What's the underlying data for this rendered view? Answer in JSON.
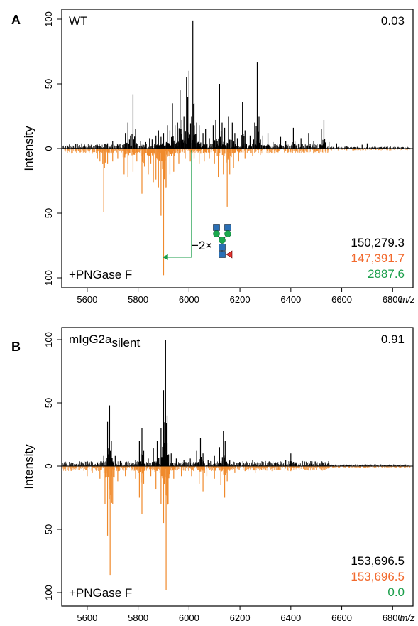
{
  "colors": {
    "top": "#000000",
    "bottom": "#f08a2c",
    "green": "#1a9e4a",
    "orange_text": "#f26a2e",
    "glycan_blue": "#2a6fb5",
    "glycan_green": "#1aa84c",
    "glycan_red": "#e2332e"
  },
  "chart_data": [
    {
      "panel": "A",
      "type": "line",
      "top_label": "WT",
      "bottom_label": "+PNGase F",
      "correlation": "0.03",
      "masses": [
        "150,279.3",
        "147,391.7",
        "2887.6"
      ],
      "glycan_label": "−2×",
      "ylabel": "Intensity",
      "xlabel": "m/z",
      "xlim": [
        5500,
        6880
      ],
      "ylim_top": [
        0,
        100
      ],
      "ylim_bottom": [
        0,
        100
      ],
      "x_ticks": [
        5600,
        5800,
        6000,
        6200,
        6400,
        6600,
        6800
      ],
      "y_ticks": [
        100,
        50,
        0,
        50,
        100
      ],
      "series": [
        {
          "name": "WT",
          "peaks": [
            [
              5590,
              2
            ],
            [
              5640,
              3
            ],
            [
              5680,
              4
            ],
            [
              5700,
              6
            ],
            [
              5720,
              3
            ],
            [
              5750,
              12
            ],
            [
              5760,
              20
            ],
            [
              5770,
              10
            ],
            [
              5780,
              42
            ],
            [
              5790,
              15
            ],
            [
              5810,
              6
            ],
            [
              5830,
              5
            ],
            [
              5845,
              8
            ],
            [
              5855,
              7
            ],
            [
              5870,
              10
            ],
            [
              5880,
              14
            ],
            [
              5890,
              9
            ],
            [
              5900,
              12
            ],
            [
              5915,
              18
            ],
            [
              5925,
              14
            ],
            [
              5935,
              35
            ],
            [
              5945,
              18
            ],
            [
              5955,
              20
            ],
            [
              5965,
              45
            ],
            [
              5972,
              22
            ],
            [
              5980,
              25
            ],
            [
              5990,
              55
            ],
            [
              5995,
              40
            ],
            [
              6000,
              60
            ],
            [
              6010,
              25
            ],
            [
              6015,
              99
            ],
            [
              6020,
              35
            ],
            [
              6030,
              20
            ],
            [
              6040,
              18
            ],
            [
              6055,
              12
            ],
            [
              6065,
              15
            ],
            [
              6080,
              8
            ],
            [
              6095,
              18
            ],
            [
              6105,
              22
            ],
            [
              6120,
              50
            ],
            [
              6130,
              20
            ],
            [
              6140,
              16
            ],
            [
              6155,
              25
            ],
            [
              6170,
              20
            ],
            [
              6180,
              12
            ],
            [
              6190,
              8
            ],
            [
              6210,
              36
            ],
            [
              6220,
              14
            ],
            [
              6240,
              10
            ],
            [
              6258,
              20
            ],
            [
              6268,
              67
            ],
            [
              6275,
              25
            ],
            [
              6290,
              10
            ],
            [
              6310,
              12
            ],
            [
              6330,
              5
            ],
            [
              6360,
              9
            ],
            [
              6380,
              6
            ],
            [
              6410,
              16
            ],
            [
              6440,
              8
            ],
            [
              6470,
              12
            ],
            [
              6490,
              6
            ],
            [
              6520,
              15
            ],
            [
              6530,
              22
            ],
            [
              6550,
              5
            ],
            [
              6580,
              4
            ],
            [
              6620,
              2
            ],
            [
              6680,
              3
            ],
            [
              6700,
              4
            ],
            [
              6730,
              2
            ],
            [
              6790,
              2
            ],
            [
              6840,
              1
            ]
          ]
        },
        {
          "name": "+PNGase F",
          "peaks": [
            [
              5580,
              2
            ],
            [
              5620,
              4
            ],
            [
              5640,
              8
            ],
            [
              5650,
              10
            ],
            [
              5665,
              49
            ],
            [
              5680,
              12
            ],
            [
              5700,
              10
            ],
            [
              5720,
              8
            ],
            [
              5745,
              20
            ],
            [
              5760,
              22
            ],
            [
              5780,
              18
            ],
            [
              5795,
              10
            ],
            [
              5815,
              35
            ],
            [
              5825,
              14
            ],
            [
              5840,
              20
            ],
            [
              5850,
              12
            ],
            [
              5860,
              26
            ],
            [
              5870,
              24
            ],
            [
              5880,
              30
            ],
            [
              5890,
              52
            ],
            [
              5900,
              98
            ],
            [
              5910,
              30
            ],
            [
              5925,
              20
            ],
            [
              5940,
              18
            ],
            [
              5960,
              12
            ],
            [
              5985,
              8
            ],
            [
              6005,
              10
            ],
            [
              6020,
              8
            ],
            [
              6040,
              12
            ],
            [
              6060,
              10
            ],
            [
              6080,
              8
            ],
            [
              6100,
              12
            ],
            [
              6115,
              22
            ],
            [
              6135,
              20
            ],
            [
              6150,
              45
            ],
            [
              6160,
              20
            ],
            [
              6175,
              15
            ],
            [
              6195,
              10
            ],
            [
              6220,
              8
            ],
            [
              6250,
              6
            ],
            [
              6280,
              5
            ],
            [
              6310,
              4
            ],
            [
              6350,
              3
            ],
            [
              6400,
              3
            ],
            [
              6450,
              2
            ],
            [
              6500,
              2
            ]
          ]
        }
      ]
    },
    {
      "panel": "B",
      "type": "line",
      "top_label": "mIgG2a",
      "top_label_sub": "silent",
      "bottom_label": "+PNGase F",
      "correlation": "0.91",
      "masses": [
        "153,696.5",
        "153,696.5",
        "0.0"
      ],
      "ylabel": "Intensity",
      "xlabel": "m/z",
      "xlim": [
        5500,
        6880
      ],
      "ylim_top": [
        0,
        100
      ],
      "ylim_bottom": [
        0,
        100
      ],
      "x_ticks": [
        5600,
        5800,
        6000,
        6200,
        6400,
        6600,
        6800
      ],
      "y_ticks": [
        100,
        50,
        0,
        50,
        100
      ],
      "series": [
        {
          "name": "mIgG2a silent",
          "peaks": [
            [
              5560,
              2
            ],
            [
              5600,
              4
            ],
            [
              5640,
              3
            ],
            [
              5665,
              8
            ],
            [
              5680,
              35
            ],
            [
              5688,
              48
            ],
            [
              5695,
              20
            ],
            [
              5710,
              8
            ],
            [
              5730,
              4
            ],
            [
              5760,
              3
            ],
            [
              5790,
              5
            ],
            [
              5805,
              20
            ],
            [
              5815,
              30
            ],
            [
              5822,
              12
            ],
            [
              5840,
              6
            ],
            [
              5860,
              14
            ],
            [
              5875,
              20
            ],
            [
              5890,
              30
            ],
            [
              5900,
              60
            ],
            [
              5908,
              100
            ],
            [
              5914,
              40
            ],
            [
              5930,
              10
            ],
            [
              5950,
              6
            ],
            [
              5980,
              5
            ],
            [
              6005,
              6
            ],
            [
              6030,
              12
            ],
            [
              6045,
              22
            ],
            [
              6055,
              10
            ],
            [
              6075,
              5
            ],
            [
              6100,
              8
            ],
            [
              6120,
              15
            ],
            [
              6135,
              28
            ],
            [
              6142,
              20
            ],
            [
              6160,
              5
            ],
            [
              6200,
              3
            ],
            [
              6250,
              5
            ],
            [
              6300,
              4
            ],
            [
              6340,
              3
            ],
            [
              6380,
              5
            ],
            [
              6400,
              10
            ],
            [
              6420,
              3
            ],
            [
              6480,
              2
            ],
            [
              6550,
              2
            ],
            [
              6620,
              1
            ]
          ]
        },
        {
          "name": "+PNGase F",
          "peaks": [
            [
              5560,
              3
            ],
            [
              5600,
              8
            ],
            [
              5620,
              5
            ],
            [
              5650,
              10
            ],
            [
              5670,
              30
            ],
            [
              5680,
              55
            ],
            [
              5690,
              86
            ],
            [
              5700,
              30
            ],
            [
              5720,
              12
            ],
            [
              5750,
              8
            ],
            [
              5790,
              10
            ],
            [
              5805,
              25
            ],
            [
              5815,
              38
            ],
            [
              5822,
              14
            ],
            [
              5850,
              8
            ],
            [
              5870,
              18
            ],
            [
              5890,
              30
            ],
            [
              5900,
              45
            ],
            [
              5910,
              98
            ],
            [
              5918,
              30
            ],
            [
              5940,
              10
            ],
            [
              5970,
              8
            ],
            [
              6010,
              8
            ],
            [
              6040,
              14
            ],
            [
              6055,
              20
            ],
            [
              6070,
              8
            ],
            [
              6100,
              10
            ],
            [
              6125,
              15
            ],
            [
              6140,
              25
            ],
            [
              6150,
              12
            ],
            [
              6180,
              5
            ],
            [
              6220,
              4
            ],
            [
              6260,
              5
            ],
            [
              6300,
              3
            ],
            [
              6350,
              3
            ],
            [
              6400,
              4
            ],
            [
              6450,
              2
            ],
            [
              6520,
              2
            ]
          ]
        }
      ]
    }
  ]
}
